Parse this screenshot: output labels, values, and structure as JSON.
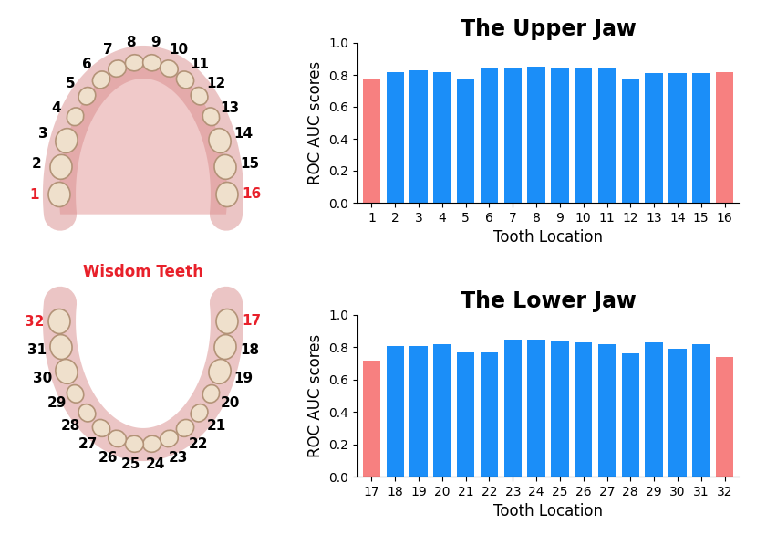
{
  "chart_data": [
    {
      "type": "bar",
      "title": "The Upper Jaw",
      "x_label": "Tooth Location",
      "y_label": "ROC AUC scores",
      "categories": [
        "1",
        "2",
        "3",
        "4",
        "5",
        "6",
        "7",
        "8",
        "9",
        "10",
        "11",
        "12",
        "13",
        "14",
        "15",
        "16"
      ],
      "values": [
        0.77,
        0.82,
        0.83,
        0.82,
        0.77,
        0.84,
        0.84,
        0.85,
        0.84,
        0.84,
        0.84,
        0.77,
        0.81,
        0.81,
        0.81,
        0.82
      ],
      "colors": [
        "#f78080",
        "#1b8ef8",
        "#1b8ef8",
        "#1b8ef8",
        "#1b8ef8",
        "#1b8ef8",
        "#1b8ef8",
        "#1b8ef8",
        "#1b8ef8",
        "#1b8ef8",
        "#1b8ef8",
        "#1b8ef8",
        "#1b8ef8",
        "#1b8ef8",
        "#1b8ef8",
        "#f78080"
      ],
      "ylim": [
        0,
        1.0
      ],
      "yticks": [
        {
          "value": 0,
          "label": "0.0"
        },
        0.2,
        0.4,
        0.6,
        0.8,
        {
          "value": 1.0,
          "label": "1.0"
        }
      ],
      "grid": false
    },
    {
      "type": "bar",
      "title": "The Lower Jaw",
      "x_label": "Tooth Location",
      "y_label": "ROC AUC scores",
      "categories": [
        "17",
        "18",
        "19",
        "20",
        "21",
        "22",
        "23",
        "24",
        "25",
        "26",
        "27",
        "28",
        "29",
        "30",
        "31",
        "32"
      ],
      "values": [
        0.72,
        0.81,
        0.81,
        0.82,
        0.77,
        0.77,
        0.85,
        0.85,
        0.84,
        0.83,
        0.82,
        0.76,
        0.83,
        0.79,
        0.82,
        0.74
      ],
      "colors": [
        "#f78080",
        "#1b8ef8",
        "#1b8ef8",
        "#1b8ef8",
        "#1b8ef8",
        "#1b8ef8",
        "#1b8ef8",
        "#1b8ef8",
        "#1b8ef8",
        "#1b8ef8",
        "#1b8ef8",
        "#1b8ef8",
        "#1b8ef8",
        "#1b8ef8",
        "#1b8ef8",
        "#f78080"
      ],
      "ylim": [
        0,
        1.0
      ],
      "yticks": [
        {
          "value": 0,
          "label": "0.0"
        },
        0.2,
        0.4,
        0.6,
        0.8,
        {
          "value": 1.0,
          "label": "1.0"
        }
      ],
      "grid": false
    }
  ],
  "diagram": {
    "caption": "Wisdom Teeth",
    "upper_jaw": [
      "1",
      "2",
      "3",
      "4",
      "5",
      "6",
      "7",
      "8",
      "9",
      "10",
      "11",
      "12",
      "13",
      "14",
      "15",
      "16"
    ],
    "lower_jaw": [
      "17",
      "18",
      "19",
      "20",
      "21",
      "22",
      "23",
      "24",
      "25",
      "26",
      "27",
      "28",
      "29",
      "30",
      "31",
      "32"
    ],
    "wisdom_teeth": [
      "1",
      "16",
      "17",
      "32"
    ],
    "highlight_color": "#e8202a"
  }
}
